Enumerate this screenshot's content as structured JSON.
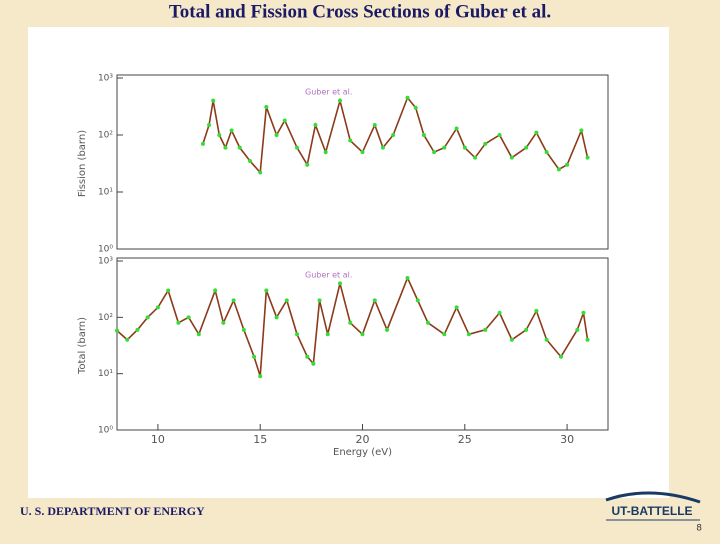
{
  "title": "Total and Fission Cross Sections of Guber et al.",
  "footer": {
    "org": "U. S. DEPARTMENT OF ENERGY",
    "logo": "UT-BATTELLE",
    "page": "8"
  },
  "chart_data": [
    {
      "type": "line",
      "ylabel": "Fission (barn)",
      "log_scale": true,
      "xlim": [
        8,
        32
      ],
      "ylim": [
        1,
        1000
      ],
      "yticks": [
        {
          "value": 1,
          "label": "10⁰"
        },
        {
          "value": 10,
          "label": "10¹"
        },
        {
          "value": 100,
          "label": "10²"
        },
        {
          "value": 1000,
          "label": "10³"
        }
      ],
      "series": [
        {
          "name": "Guber et al.",
          "color": "#33dd33",
          "line_color": "#8b3a1a",
          "x": [
            12.2,
            12.5,
            12.7,
            13.0,
            13.3,
            13.6,
            14.0,
            14.5,
            15.0,
            15.3,
            15.8,
            16.2,
            16.8,
            17.3,
            17.7,
            18.2,
            18.9,
            19.4,
            20.0,
            20.6,
            21.0,
            21.5,
            22.2,
            22.6,
            23.0,
            23.5,
            24.0,
            24.6,
            25.0,
            25.5,
            26.0,
            26.7,
            27.3,
            28.0,
            28.5,
            29.0,
            29.6,
            30.0,
            30.7,
            31.0
          ],
          "values": [
            70,
            150,
            400,
            100,
            60,
            120,
            60,
            35,
            22,
            310,
            100,
            180,
            60,
            30,
            150,
            50,
            400,
            80,
            50,
            150,
            60,
            100,
            450,
            300,
            100,
            50,
            60,
            130,
            60,
            40,
            70,
            100,
            40,
            60,
            110,
            50,
            25,
            30,
            120,
            40
          ]
        }
      ]
    },
    {
      "type": "line",
      "ylabel": "Total (barn)",
      "xlabel": "Energy (eV)",
      "log_scale": true,
      "xlim": [
        8,
        32
      ],
      "xticks": [
        10,
        15,
        20,
        25,
        30
      ],
      "ylim": [
        1,
        1000
      ],
      "yticks": [
        {
          "value": 1,
          "label": "10⁰"
        },
        {
          "value": 10,
          "label": "10¹"
        },
        {
          "value": 100,
          "label": "10²"
        },
        {
          "value": 1000,
          "label": "10³"
        }
      ],
      "series": [
        {
          "name": "Guber et al.",
          "color": "#33dd33",
          "line_color": "#8b3a1a",
          "x": [
            8.0,
            8.5,
            9.0,
            9.5,
            10.0,
            10.5,
            11.0,
            11.5,
            12.0,
            12.8,
            13.2,
            13.7,
            14.2,
            14.7,
            15.0,
            15.3,
            15.8,
            16.3,
            16.8,
            17.3,
            17.6,
            17.9,
            18.3,
            18.9,
            19.4,
            20.0,
            20.6,
            21.2,
            22.2,
            22.7,
            23.2,
            24.0,
            24.6,
            25.2,
            26.0,
            26.7,
            27.3,
            28.0,
            28.5,
            29.0,
            29.7,
            30.5,
            30.8,
            31.0
          ],
          "values": [
            58,
            40,
            60,
            100,
            150,
            300,
            80,
            100,
            50,
            300,
            80,
            200,
            60,
            20,
            9,
            300,
            100,
            200,
            50,
            20,
            15,
            200,
            50,
            400,
            80,
            50,
            200,
            60,
            500,
            200,
            80,
            50,
            150,
            50,
            60,
            120,
            40,
            60,
            130,
            40,
            20,
            60,
            120,
            40
          ]
        }
      ]
    }
  ]
}
